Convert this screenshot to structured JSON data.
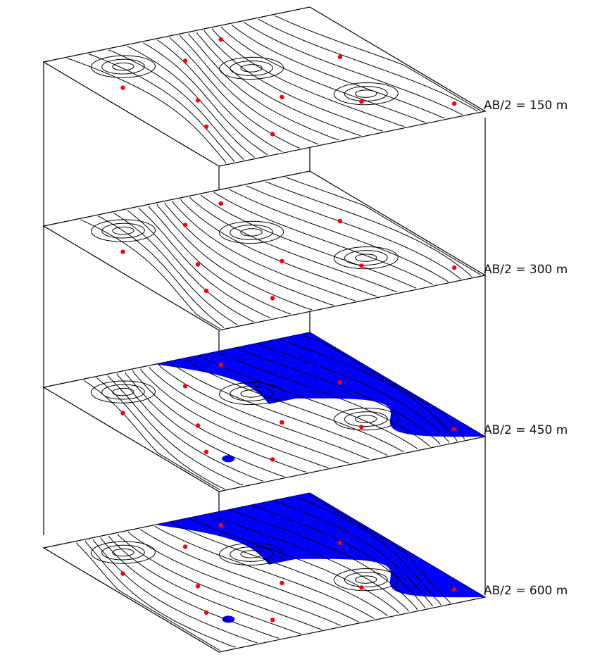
{
  "diagram": {
    "type": "stacked 3D resistivity contour maps",
    "fill_color": "#0000ff",
    "line_color": "#000000",
    "station_marker_color": "#ff0000",
    "layers": [
      {
        "label": "AB/2 = 150 m",
        "blue_fill": false
      },
      {
        "label": "AB/2 = 300 m",
        "blue_fill": false
      },
      {
        "label": "AB/2 = 450 m",
        "blue_fill": true
      },
      {
        "label": "AB/2 = 600 m",
        "blue_fill": true
      }
    ]
  }
}
